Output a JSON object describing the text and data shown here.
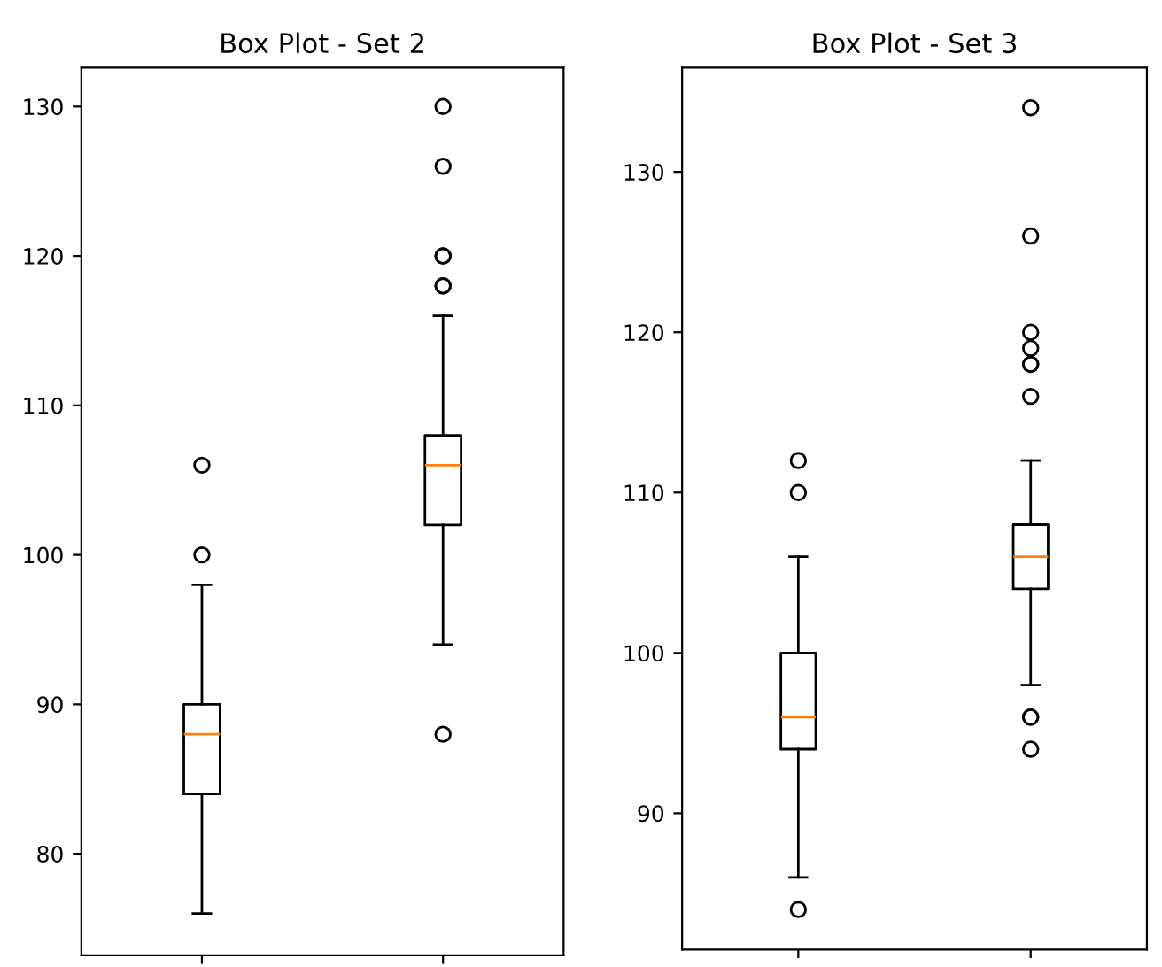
{
  "chart_data": [
    {
      "type": "box",
      "title": "Box Plot - Set 2",
      "categories": [
        null,
        null
      ],
      "ylim": [
        73.2,
        132.6
      ],
      "yticks": [
        80,
        90,
        100,
        110,
        120,
        130
      ],
      "grid": false,
      "boxes": [
        {
          "low": 76,
          "q1": 84,
          "median": 88,
          "q3": 90,
          "high": 98,
          "outliers": [
            100,
            106
          ]
        },
        {
          "low": 94,
          "q1": 102,
          "median": 106,
          "q3": 108,
          "high": 116,
          "outliers": [
            88,
            118,
            118,
            120,
            120,
            126,
            130
          ]
        }
      ]
    },
    {
      "type": "box",
      "title": "Box Plot - Set 3",
      "categories": [
        null,
        null
      ],
      "ylim": [
        81.5,
        136.5
      ],
      "yticks": [
        90,
        100,
        110,
        120,
        130
      ],
      "grid": false,
      "boxes": [
        {
          "low": 86,
          "q1": 94,
          "median": 96,
          "q3": 100,
          "high": 106,
          "outliers": [
            84,
            110,
            112
          ]
        },
        {
          "low": 98,
          "q1": 104,
          "median": 106,
          "q3": 108,
          "high": 112,
          "outliers": [
            94,
            96,
            96,
            116,
            118,
            118,
            119,
            120,
            126,
            134
          ]
        }
      ]
    }
  ]
}
